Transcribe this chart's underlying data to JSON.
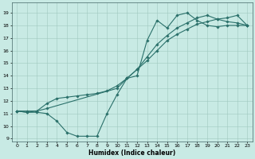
{
  "xlabel": "Humidex (Indice chaleur)",
  "xlim": [
    -0.5,
    23.5
  ],
  "ylim": [
    8.8,
    19.8
  ],
  "xticks": [
    0,
    1,
    2,
    3,
    4,
    5,
    6,
    7,
    8,
    9,
    10,
    11,
    12,
    13,
    14,
    15,
    16,
    17,
    18,
    19,
    20,
    21,
    22,
    23
  ],
  "yticks": [
    9,
    10,
    11,
    12,
    13,
    14,
    15,
    16,
    17,
    18,
    19
  ],
  "bg_color": "#c8eae4",
  "grid_color": "#a0c8c0",
  "line_color": "#2a706a",
  "line1_x": [
    0,
    1,
    2,
    3,
    4,
    5,
    6,
    7,
    8,
    9,
    10,
    11,
    12,
    13,
    14,
    15,
    16,
    17,
    18,
    19,
    20,
    21,
    22,
    23
  ],
  "line1_y": [
    11.2,
    11.1,
    11.1,
    11.0,
    10.4,
    9.5,
    9.2,
    9.2,
    9.2,
    11.0,
    12.5,
    13.8,
    14.0,
    16.8,
    18.4,
    17.8,
    18.8,
    19.0,
    18.4,
    18.0,
    17.9,
    18.0,
    18.0,
    18.0
  ],
  "line2_x": [
    0,
    1,
    2,
    3,
    10,
    11,
    12,
    13,
    14,
    15,
    16,
    17,
    18,
    19,
    20,
    21,
    22,
    23
  ],
  "line2_y": [
    11.2,
    11.1,
    11.2,
    11.4,
    13.0,
    13.8,
    14.5,
    15.5,
    16.5,
    17.2,
    17.8,
    18.2,
    18.6,
    18.8,
    18.5,
    18.3,
    18.2,
    18.0
  ],
  "line3_x": [
    0,
    1,
    2,
    3,
    4,
    5,
    6,
    7,
    8,
    9,
    10,
    11,
    12,
    13,
    14,
    15,
    16,
    17,
    18,
    19,
    20,
    21,
    22,
    23
  ],
  "line3_y": [
    11.2,
    11.2,
    11.2,
    11.8,
    12.2,
    12.3,
    12.4,
    12.5,
    12.6,
    12.8,
    13.2,
    13.8,
    14.5,
    15.2,
    16.0,
    16.8,
    17.3,
    17.7,
    18.1,
    18.3,
    18.5,
    18.6,
    18.8,
    18.0
  ]
}
